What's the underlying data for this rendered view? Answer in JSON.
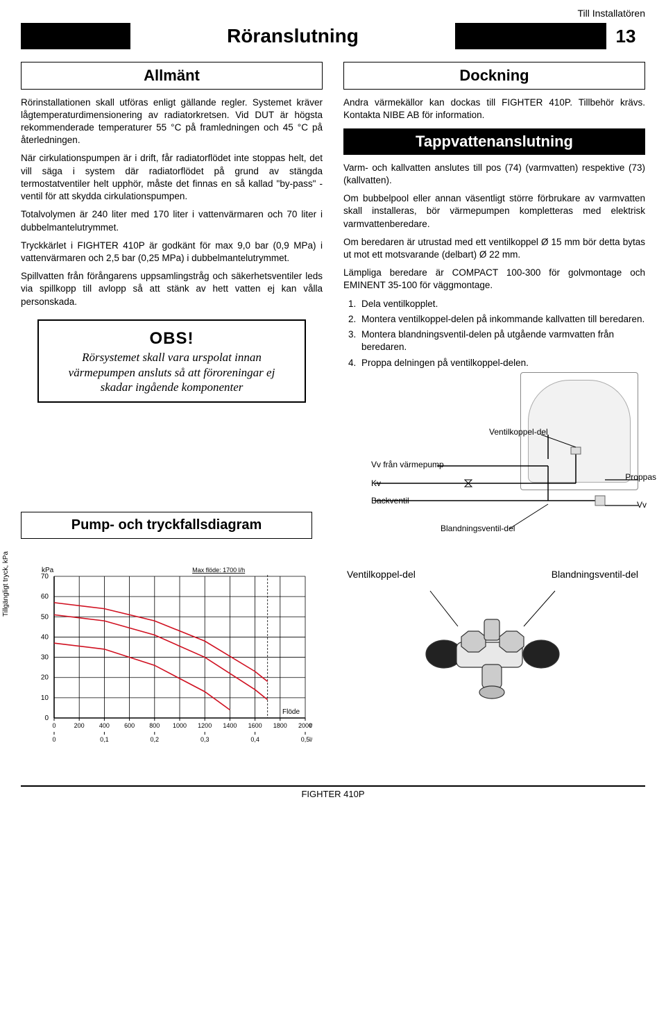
{
  "header": {
    "installer_note": "Till Installatören",
    "main_title": "Röranslutning",
    "page_number": "13"
  },
  "left": {
    "heading": "Allmänt",
    "p1": "Rörinstallationen skall utföras enligt gällande regler. Systemet kräver lågtemperaturdimensionering av radiatorkretsen. Vid DUT är högsta rekommenderade temperaturer 55 °C på framledningen och 45 °C på återledningen.",
    "p2": "När cirkulationspumpen är i drift, får radiatorflödet inte stoppas helt, det vill säga i system där radiatorflödet på grund av stängda termostatventiler helt upphör, måste det finnas en så kallad \"by-pass\" -ventil för att skydda cirkulationspumpen.",
    "p3": "Totalvolymen är 240 liter med 170 liter i vattenvärmaren och 70 liter i dubbelmantelutrymmet.",
    "p4": "Tryckkärlet i FIGHTER 410P är godkänt för max 9,0 bar (0,9 MPa) i vattenvärmaren och 2,5 bar (0,25 MPa) i dubbelmantelutrymmet.",
    "p5": "Spillvatten från förångarens uppsamlingstråg och säkerhetsventiler leds via spillkopp till avlopp så att stänk av hett vatten ej kan vålla personskada.",
    "obs_title": "OBS!",
    "obs_text": "Rörsystemet skall vara urspolat innan värmepumpen ansluts så att föroreningar ej skadar ingående komponenter"
  },
  "right": {
    "heading_dock": "Dockning",
    "dock_text": "Andra värmekällor kan dockas till FIGHTER 410P. Tillbehör krävs. Kontakta NIBE AB för information.",
    "heading_tap": "Tappvattenanslutning",
    "tap_p1": "Varm- och kallvatten anslutes till pos (74) (varmvatten) respektive (73) (kallvatten).",
    "tap_p2": "Om bubbelpool eller annan väsentligt större förbrukare av varmvatten skall installeras, bör värmepumpen kompletteras med elektrisk varmvattenberedare.",
    "tap_p3": "Om beredaren är utrustad med ett ventilkoppel Ø 15 mm bör detta bytas ut mot ett motsvarande (delbart) Ø 22 mm.",
    "tap_p4": "Lämpliga beredare är COMPACT 100-300 för golvmontage och EMINENT 35-100 för väggmontage.",
    "steps": [
      "Dela ventilkopplet.",
      "Montera ventilkoppel-delen på inkommande kallvatten till beredaren.",
      "Montera blandningsventil-delen på utgående varmvatten från beredaren.",
      "Proppa delningen på ventilkoppel-delen."
    ]
  },
  "pump_heading": "Pump- och tryckfallsdiagram",
  "schematic": {
    "ventilkoppel": "Ventilkoppel-del",
    "vv_from": "Vv från värmepump",
    "kv": "Kv",
    "backventil": "Backventil",
    "proppas": "Proppas",
    "vv": "Vv",
    "bland": "Blandningsventil-del"
  },
  "chart": {
    "type": "line",
    "y_label": "Tillgängligt tryck, kPa",
    "y_unit": "kPa",
    "x_label": "Flöde",
    "x_unit_top": "l/h",
    "x_unit_bot": "l/s",
    "max_flow_label": "Max flöde: 1700 l/h",
    "xlim": [
      0,
      2000
    ],
    "ylim": [
      0,
      70
    ],
    "xtick_step": 200,
    "ytick_step": 10,
    "xticks_lh": [
      0,
      200,
      400,
      600,
      800,
      1000,
      1200,
      1400,
      1600,
      1800,
      2000
    ],
    "xticks_ls": [
      "0",
      "0,1",
      "0,2",
      "0,3",
      "0,4",
      "0,5"
    ],
    "yticks": [
      0,
      10,
      20,
      30,
      40,
      50,
      60,
      70
    ],
    "max_flow_x": 1700,
    "grid_color": "#000000",
    "background_color": "#ffffff",
    "curve_color": "#d01020",
    "curve_width": 1.6,
    "series": [
      {
        "name": "curve1",
        "points": [
          [
            0,
            57
          ],
          [
            400,
            54
          ],
          [
            800,
            48
          ],
          [
            1200,
            38
          ],
          [
            1600,
            23
          ],
          [
            1700,
            18
          ]
        ]
      },
      {
        "name": "curve2",
        "points": [
          [
            0,
            51
          ],
          [
            400,
            48
          ],
          [
            800,
            41
          ],
          [
            1200,
            30
          ],
          [
            1600,
            14
          ],
          [
            1700,
            9
          ]
        ]
      },
      {
        "name": "curve3",
        "points": [
          [
            0,
            37
          ],
          [
            400,
            34
          ],
          [
            800,
            26
          ],
          [
            1200,
            13
          ],
          [
            1400,
            4
          ]
        ]
      }
    ]
  },
  "valve_labels": {
    "left": "Ventilkoppel-del",
    "right": "Blandningsventil-del"
  },
  "footer": "FIGHTER 410P"
}
